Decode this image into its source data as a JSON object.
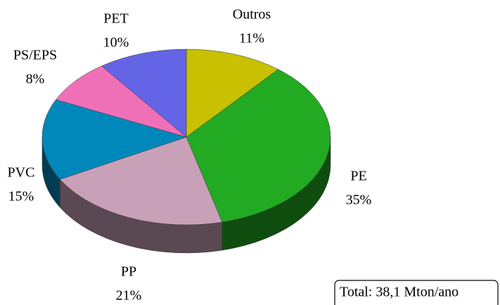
{
  "chart_data": {
    "type": "pie",
    "categories": [
      "Outros",
      "PE",
      "PP",
      "PVC",
      "PS/EPS",
      "PET"
    ],
    "values": [
      11,
      35,
      21,
      15,
      8,
      10
    ],
    "value_labels": [
      "11%",
      "35%",
      "21%",
      "15%",
      "8%",
      "10%"
    ],
    "colors": [
      "#c8c000",
      "#22aa22",
      "#c8a0b8",
      "#0088bb",
      "#f070b8",
      "#6464e6"
    ],
    "annotation": "Total: 38,1 Mton/ano"
  }
}
